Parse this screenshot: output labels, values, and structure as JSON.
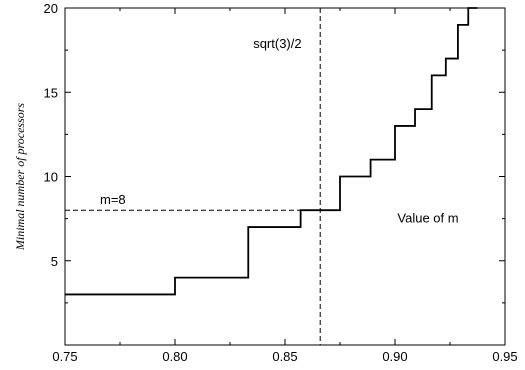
{
  "chart_data": {
    "type": "line",
    "title": "",
    "xlabel": "",
    "ylabel": "Minimal number of processors",
    "xlim": [
      0.75,
      0.95
    ],
    "ylim": [
      0,
      20
    ],
    "xticks": [
      "0.75",
      "0.80",
      "0.85",
      "0.90",
      "0.95"
    ],
    "yticks": [
      "5",
      "10",
      "15",
      "20"
    ],
    "xtick_values": [
      0.75,
      0.8,
      0.85,
      0.9,
      0.95
    ],
    "ytick_values": [
      5,
      10,
      15,
      20
    ],
    "grid": false,
    "series": [
      {
        "style": "step",
        "color": "#000000",
        "points": [
          [
            0.75,
            3
          ],
          [
            0.8,
            3
          ],
          [
            0.8,
            4
          ],
          [
            0.8333,
            4
          ],
          [
            0.8333,
            7
          ],
          [
            0.8571,
            7
          ],
          [
            0.8571,
            8
          ],
          [
            0.875,
            8
          ],
          [
            0.875,
            10
          ],
          [
            0.8889,
            10
          ],
          [
            0.8889,
            11
          ],
          [
            0.9,
            11
          ],
          [
            0.9,
            13
          ],
          [
            0.9091,
            13
          ],
          [
            0.9091,
            14
          ],
          [
            0.9167,
            14
          ],
          [
            0.9167,
            16
          ],
          [
            0.9231,
            16
          ],
          [
            0.9231,
            17
          ],
          [
            0.9286,
            17
          ],
          [
            0.9286,
            19
          ],
          [
            0.9333,
            19
          ],
          [
            0.9333,
            20
          ],
          [
            0.9375,
            20
          ]
        ]
      }
    ],
    "reference_lines": [
      {
        "orientation": "vertical",
        "value": 0.866,
        "label": "sqrt(3)/2",
        "style": "dashed"
      },
      {
        "orientation": "horizontal",
        "value": 8,
        "label": "m=8",
        "style": "dashed"
      }
    ],
    "annotations": [
      {
        "text": "Value of m"
      }
    ]
  }
}
